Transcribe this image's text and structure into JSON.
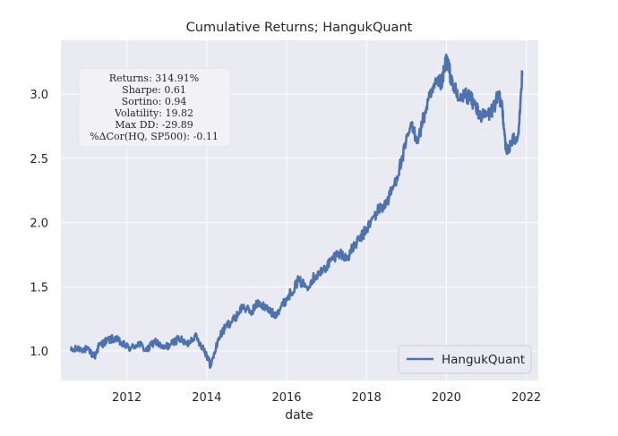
{
  "chart_data": {
    "type": "line",
    "title": "Cumulative Returns; HangukQuant",
    "xlabel": "date",
    "ylabel": "",
    "xlim": [
      2010.35,
      2022.3
    ],
    "ylim": [
      0.77,
      3.42
    ],
    "xticks": [
      2012,
      2014,
      2016,
      2018,
      2020,
      2022
    ],
    "xtick_labels": [
      "2012",
      "2014",
      "2016",
      "2018",
      "2020",
      "2022"
    ],
    "yticks": [
      1.0,
      1.5,
      2.0,
      2.5,
      3.0
    ],
    "ytick_labels": [
      "1.0",
      "1.5",
      "2.0",
      "2.5",
      "3.0"
    ],
    "grid": true,
    "legend_position": "lower-right",
    "series": [
      {
        "name": "HangukQuant",
        "color": "#4c72b0",
        "x": [
          2010.6,
          2010.8,
          2011.0,
          2011.2,
          2011.3,
          2011.5,
          2011.7,
          2011.9,
          2012.1,
          2012.3,
          2012.5,
          2012.7,
          2012.9,
          2013.1,
          2013.3,
          2013.5,
          2013.7,
          2013.9,
          2014.0,
          2014.1,
          2014.3,
          2014.5,
          2014.7,
          2014.9,
          2015.1,
          2015.3,
          2015.5,
          2015.7,
          2015.9,
          2016.1,
          2016.3,
          2016.5,
          2016.7,
          2016.9,
          2017.1,
          2017.3,
          2017.5,
          2017.7,
          2017.9,
          2018.1,
          2018.3,
          2018.5,
          2018.7,
          2018.9,
          2019.1,
          2019.3,
          2019.5,
          2019.7,
          2019.9,
          2020.0,
          2020.1,
          2020.3,
          2020.5,
          2020.7,
          2020.9,
          2021.1,
          2021.3,
          2021.4,
          2021.5,
          2021.6,
          2021.8,
          2021.9
        ],
        "values": [
          1.0,
          1.02,
          1.01,
          0.96,
          1.04,
          1.08,
          1.1,
          1.05,
          1.02,
          1.06,
          1.0,
          1.08,
          1.02,
          1.05,
          1.1,
          1.05,
          1.12,
          1.03,
          0.97,
          0.88,
          1.1,
          1.2,
          1.25,
          1.35,
          1.3,
          1.38,
          1.33,
          1.28,
          1.36,
          1.45,
          1.55,
          1.5,
          1.58,
          1.62,
          1.7,
          1.77,
          1.72,
          1.82,
          1.9,
          2.0,
          2.1,
          2.15,
          2.3,
          2.5,
          2.75,
          2.65,
          2.9,
          3.05,
          3.1,
          3.28,
          3.15,
          2.95,
          3.0,
          2.92,
          2.82,
          2.85,
          2.98,
          2.9,
          2.55,
          2.6,
          2.7,
          3.15
        ]
      }
    ],
    "stats": {
      "returns": "Returns: 314.91%",
      "sharpe": "Sharpe: 0.61",
      "sortino": "Sortino: 0.94",
      "volatility": "Volatility: 19.82",
      "max_dd": "Max DD: -29.89",
      "corr": "%ΔCor(HQ, SP500): -0.11"
    },
    "colors": {
      "plot_background": "#eaeaf2",
      "grid": "#ffffff",
      "line": "#4c72b0"
    }
  }
}
